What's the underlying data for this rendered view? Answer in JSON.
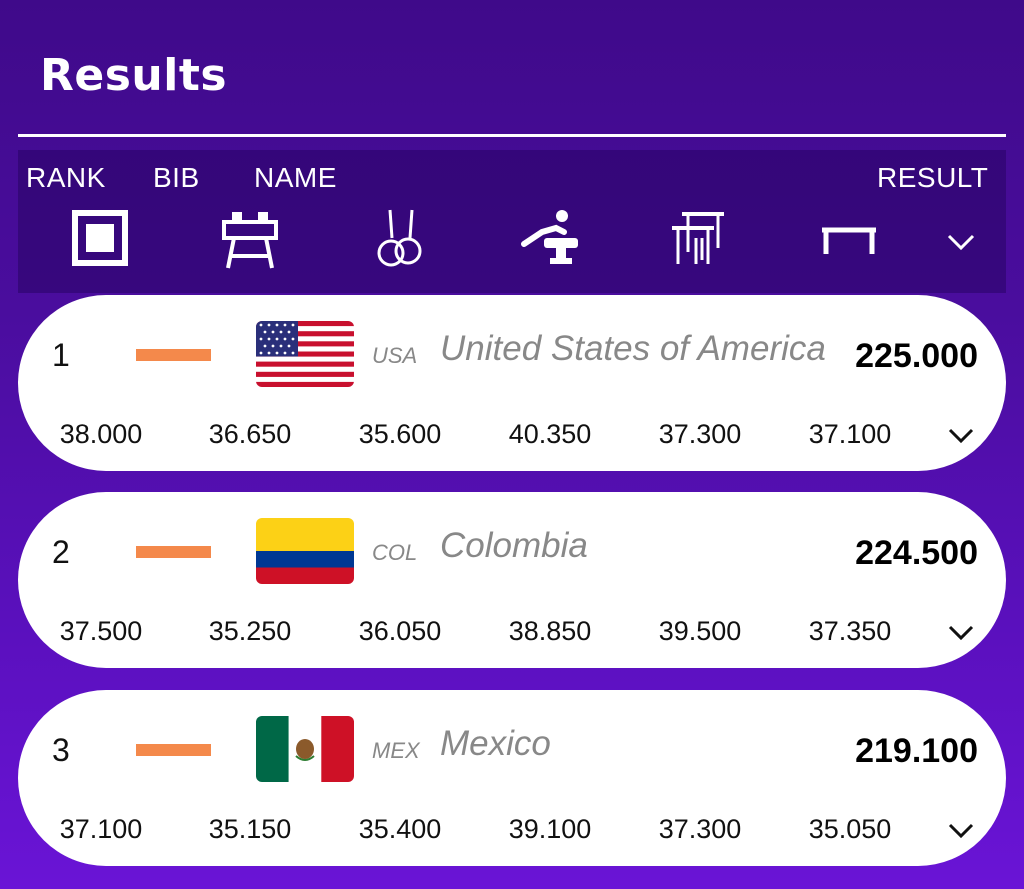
{
  "page": {
    "title": "Results"
  },
  "columns": {
    "rank": "RANK",
    "bib": "BIB",
    "name": "NAME",
    "result": "RESULT"
  },
  "apparatus_icons": [
    "floor-exercise-icon",
    "pommel-horse-icon",
    "rings-icon",
    "vault-icon",
    "parallel-bars-icon",
    "horizontal-bar-icon"
  ],
  "colors": {
    "background": "#4a0d9e",
    "bib_dash": "#f4894b",
    "card": "#ffffff",
    "muted_text": "#888888"
  },
  "results": [
    {
      "rank": "1",
      "flag": "usa-flag-icon",
      "code": "USA",
      "country": "United States of America",
      "total": "225.000",
      "scores": [
        "38.000",
        "36.650",
        "35.600",
        "40.350",
        "37.300",
        "37.100"
      ]
    },
    {
      "rank": "2",
      "flag": "colombia-flag-icon",
      "code": "COL",
      "country": "Colombia",
      "total": "224.500",
      "scores": [
        "37.500",
        "35.250",
        "36.050",
        "38.850",
        "39.500",
        "37.350"
      ]
    },
    {
      "rank": "3",
      "flag": "mexico-flag-icon",
      "code": "MEX",
      "country": "Mexico",
      "total": "219.100",
      "scores": [
        "37.100",
        "35.150",
        "35.400",
        "39.100",
        "37.300",
        "35.050"
      ]
    }
  ]
}
